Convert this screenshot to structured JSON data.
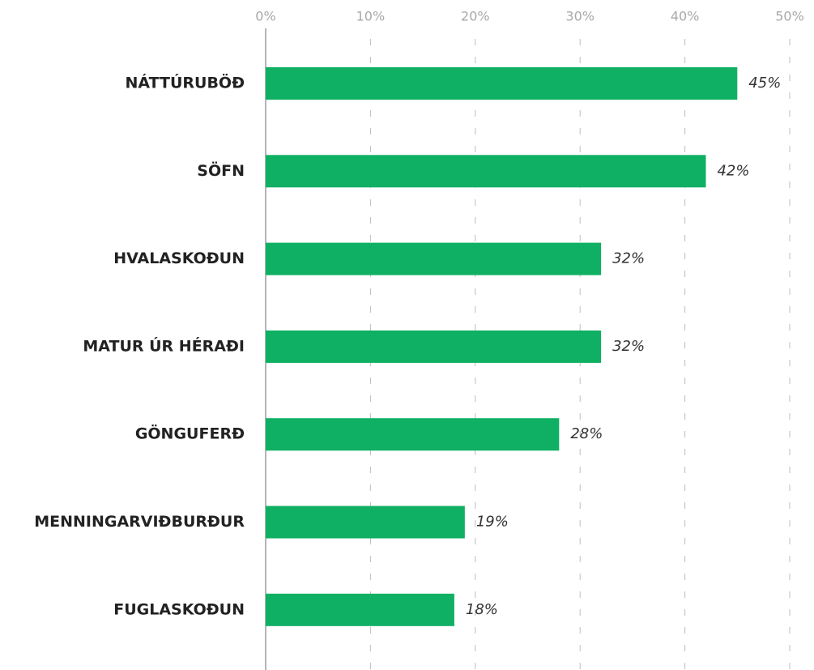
{
  "chart_data": {
    "type": "bar",
    "orientation": "horizontal",
    "categories": [
      "NÁTTÚRUBÖÐ",
      "SÖFN",
      "HVALASKOÐUN",
      "MATUR ÚR HÉRAÐI",
      "GÖNGUFERÐ",
      "MENNINGARVIÐBURÐUR",
      "FUGLASKOÐUN"
    ],
    "values": [
      45,
      42,
      32,
      32,
      28,
      19,
      18
    ],
    "value_labels": [
      "45%",
      "42%",
      "32%",
      "32%",
      "28%",
      "19%",
      "18%"
    ],
    "color": "#0fb063",
    "xlim": [
      0,
      50
    ],
    "xticks": [
      {
        "value": 0,
        "label": "0%"
      },
      {
        "value": 10,
        "label": "10%"
      },
      {
        "value": 20,
        "label": "20%"
      },
      {
        "value": 30,
        "label": "30%"
      },
      {
        "value": 40,
        "label": "40%"
      },
      {
        "value": 50,
        "label": "50%"
      }
    ],
    "grid": true
  }
}
